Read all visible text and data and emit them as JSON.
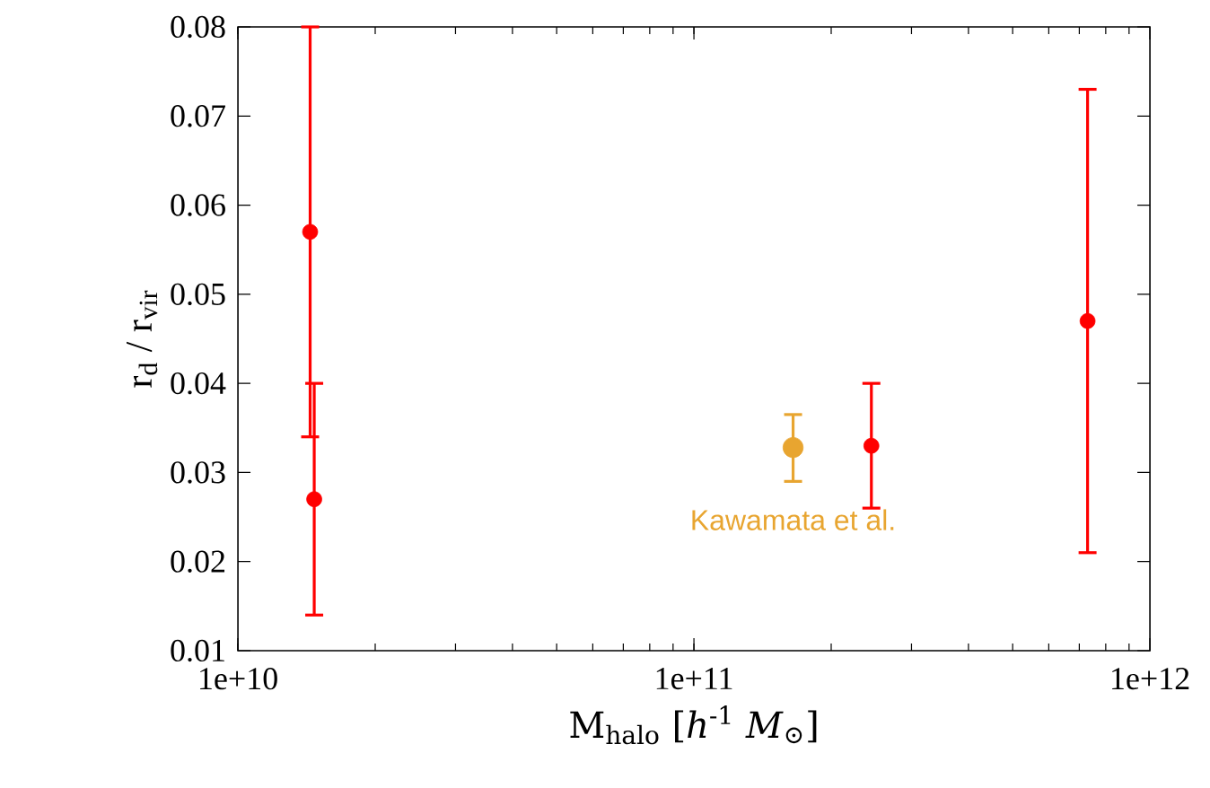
{
  "chart_data": {
    "type": "scatter",
    "xlabel": "M$_{halo}$ [*h*$^{-1}$ *M*$_{⊙}$]",
    "ylabel": "r$_{d}$ / r$_{vir}$",
    "log": "x",
    "grid": false,
    "legend": "bottom",
    "marker": "circle",
    "xlim": [
      10000000000.0,
      1000000000000.0
    ],
    "ylim": [
      0.01,
      0.08
    ],
    "xticks": [
      {
        "value": 10000000000.0,
        "label": "1e+10"
      },
      {
        "value": 100000000000.0,
        "label": "1e+11"
      },
      {
        "value": 1000000000000.0,
        "label": "1e+12"
      }
    ],
    "yticks": [
      0.01,
      0.02,
      0.03,
      0.04,
      0.05,
      0.06,
      0.07,
      0.08
    ],
    "series": [
      {
        "color": "#ff0000",
        "x": [
          14400000000.0,
          14700000000.0,
          245000000000.0,
          730000000000.0
        ],
        "values": [
          0.057,
          0.027,
          0.033,
          0.047
        ],
        "errors": [
          [
            0.034,
            0.08
          ],
          [
            0.014,
            0.04
          ],
          [
            0.026,
            0.04
          ],
          [
            0.021,
            0.073
          ]
        ]
      },
      {
        "name": "Kawamata et al.",
        "color": "#e8a530",
        "x": [
          165000000000.0
        ],
        "values": [
          0.0328
        ],
        "errors": [
          [
            0.029,
            0.0365
          ]
        ]
      }
    ]
  }
}
